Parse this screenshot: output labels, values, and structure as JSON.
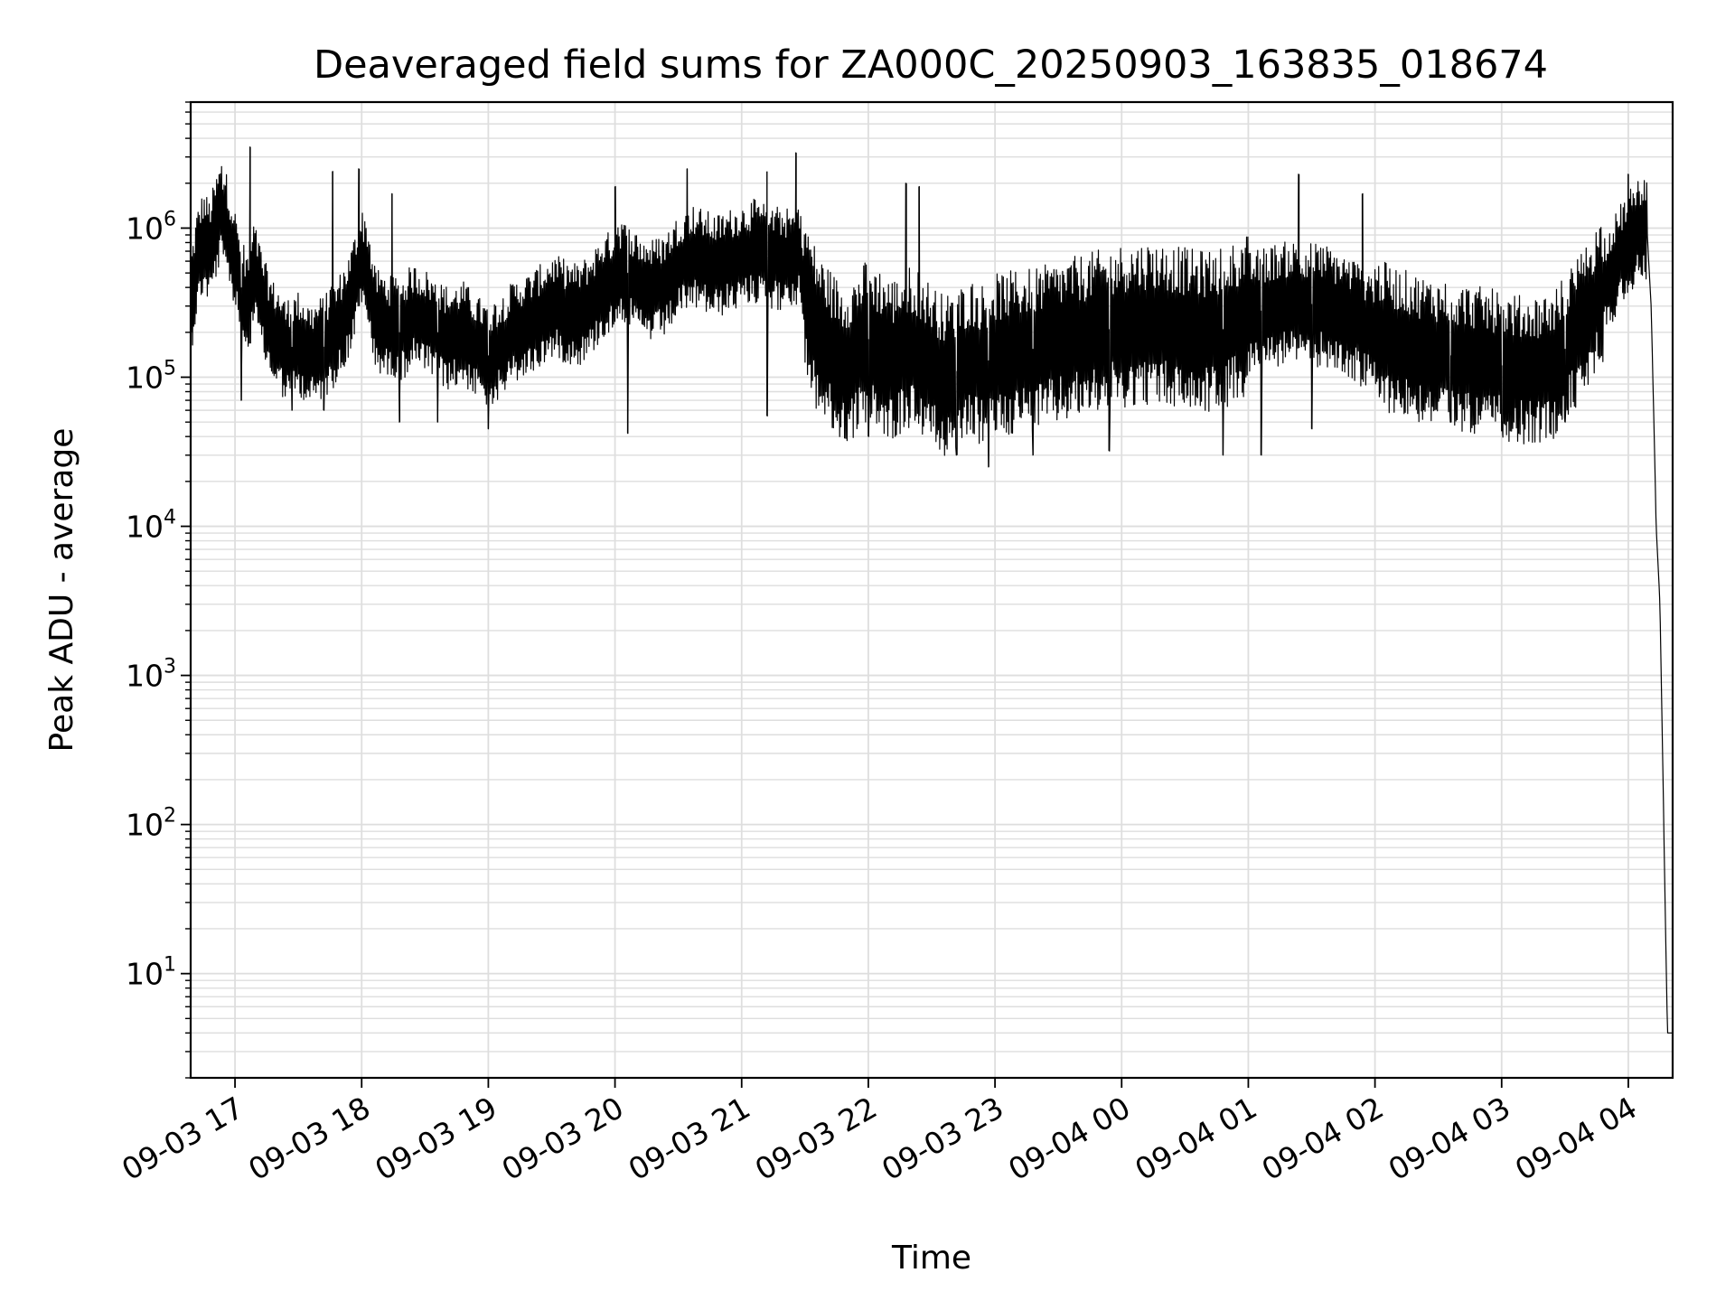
{
  "chart_data": {
    "type": "line",
    "title": "Deaveraged field sums for ZA000C_20250903_163835_018674",
    "xlabel": "Time",
    "ylabel": "Peak ADU - average",
    "yscale": "log",
    "ylim": [
      2,
      7000000
    ],
    "xlim_hours": [
      -0.35,
      11.35
    ],
    "grid": true,
    "x_ticks": [
      {
        "hour": 0,
        "label": "09-03 17"
      },
      {
        "hour": 1,
        "label": "09-03 18"
      },
      {
        "hour": 2,
        "label": "09-03 19"
      },
      {
        "hour": 3,
        "label": "09-03 20"
      },
      {
        "hour": 4,
        "label": "09-03 21"
      },
      {
        "hour": 5,
        "label": "09-03 22"
      },
      {
        "hour": 6,
        "label": "09-03 23"
      },
      {
        "hour": 7,
        "label": "09-04 00"
      },
      {
        "hour": 8,
        "label": "09-04 01"
      },
      {
        "hour": 9,
        "label": "09-04 02"
      },
      {
        "hour": 10,
        "label": "09-04 03"
      },
      {
        "hour": 11,
        "label": "09-04 04"
      }
    ],
    "y_ticks": [
      {
        "value": 10,
        "base": "10",
        "exp": "1"
      },
      {
        "value": 100,
        "base": "10",
        "exp": "2"
      },
      {
        "value": 1000,
        "base": "10",
        "exp": "3"
      },
      {
        "value": 10000,
        "base": "10",
        "exp": "4"
      },
      {
        "value": 100000,
        "base": "10",
        "exp": "5"
      },
      {
        "value": 1000000,
        "base": "10",
        "exp": "6"
      }
    ],
    "series": [
      {
        "name": "peak_adu_minus_average",
        "color": "#000000",
        "points": [
          [
            -0.35,
            300000
          ],
          [
            -0.3,
            600000
          ],
          [
            -0.25,
            800000
          ],
          [
            -0.2,
            700000
          ],
          [
            -0.15,
            1000000
          ],
          [
            -0.1,
            1400000
          ],
          [
            -0.05,
            900000
          ],
          [
            0.0,
            600000
          ],
          [
            0.05,
            400000
          ],
          [
            0.1,
            300000
          ],
          [
            0.15,
            500000
          ],
          [
            0.2,
            350000
          ],
          [
            0.25,
            250000
          ],
          [
            0.3,
            200000
          ],
          [
            0.35,
            180000
          ],
          [
            0.4,
            150000
          ],
          [
            0.5,
            170000
          ],
          [
            0.6,
            140000
          ],
          [
            0.7,
            160000
          ],
          [
            0.8,
            200000
          ],
          [
            0.9,
            300000
          ],
          [
            1.0,
            600000
          ],
          [
            1.05,
            500000
          ],
          [
            1.1,
            250000
          ],
          [
            1.2,
            220000
          ],
          [
            1.3,
            200000
          ],
          [
            1.4,
            260000
          ],
          [
            1.5,
            240000
          ],
          [
            1.6,
            200000
          ],
          [
            1.7,
            180000
          ],
          [
            1.8,
            200000
          ],
          [
            1.9,
            160000
          ],
          [
            2.0,
            140000
          ],
          [
            2.1,
            160000
          ],
          [
            2.2,
            200000
          ],
          [
            2.3,
            220000
          ],
          [
            2.4,
            250000
          ],
          [
            2.5,
            300000
          ],
          [
            2.6,
            280000
          ],
          [
            2.7,
            260000
          ],
          [
            2.8,
            300000
          ],
          [
            2.9,
            400000
          ],
          [
            3.0,
            450000
          ],
          [
            3.1,
            500000
          ],
          [
            3.2,
            400000
          ],
          [
            3.3,
            380000
          ],
          [
            3.4,
            420000
          ],
          [
            3.5,
            550000
          ],
          [
            3.6,
            650000
          ],
          [
            3.7,
            600000
          ],
          [
            3.8,
            550000
          ],
          [
            3.9,
            600000
          ],
          [
            4.0,
            650000
          ],
          [
            4.1,
            700000
          ],
          [
            4.2,
            650000
          ],
          [
            4.3,
            620000
          ],
          [
            4.4,
            600000
          ],
          [
            4.45,
            700000
          ],
          [
            4.5,
            400000
          ],
          [
            4.55,
            250000
          ],
          [
            4.6,
            200000
          ],
          [
            4.7,
            150000
          ],
          [
            4.8,
            120000
          ],
          [
            4.9,
            140000
          ],
          [
            5.0,
            180000
          ],
          [
            5.1,
            150000
          ],
          [
            5.2,
            130000
          ],
          [
            5.3,
            160000
          ],
          [
            5.4,
            150000
          ],
          [
            5.5,
            120000
          ],
          [
            5.6,
            100000
          ],
          [
            5.7,
            110000
          ],
          [
            5.8,
            130000
          ],
          [
            5.9,
            120000
          ],
          [
            6.0,
            140000
          ],
          [
            6.2,
            150000
          ],
          [
            6.4,
            160000
          ],
          [
            6.6,
            180000
          ],
          [
            6.8,
            200000
          ],
          [
            7.0,
            220000
          ],
          [
            7.2,
            230000
          ],
          [
            7.4,
            220000
          ],
          [
            7.6,
            200000
          ],
          [
            7.8,
            210000
          ],
          [
            8.0,
            260000
          ],
          [
            8.2,
            300000
          ],
          [
            8.4,
            320000
          ],
          [
            8.6,
            300000
          ],
          [
            8.8,
            250000
          ],
          [
            9.0,
            200000
          ],
          [
            9.2,
            170000
          ],
          [
            9.4,
            150000
          ],
          [
            9.6,
            140000
          ],
          [
            9.8,
            130000
          ],
          [
            10.0,
            120000
          ],
          [
            10.2,
            110000
          ],
          [
            10.4,
            120000
          ],
          [
            10.6,
            200000
          ],
          [
            10.8,
            400000
          ],
          [
            11.0,
            800000
          ],
          [
            11.1,
            1000000
          ],
          [
            11.15,
            900000
          ],
          [
            11.18,
            300000
          ],
          [
            11.2,
            60000
          ],
          [
            11.22,
            10000
          ],
          [
            11.25,
            3000
          ],
          [
            11.28,
            100
          ],
          [
            11.3,
            10
          ],
          [
            11.31,
            4
          ],
          [
            11.35,
            4
          ]
        ],
        "spikes_high": [
          [
            -0.1,
            1800000
          ],
          [
            0.12,
            3500000
          ],
          [
            0.77,
            2400000
          ],
          [
            0.98,
            2500000
          ],
          [
            1.24,
            1700000
          ],
          [
            3.0,
            1900000
          ],
          [
            3.57,
            2500000
          ],
          [
            4.2,
            2400000
          ],
          [
            4.43,
            3200000
          ],
          [
            5.3,
            2000000
          ],
          [
            5.4,
            1900000
          ],
          [
            8.4,
            2300000
          ],
          [
            8.9,
            1700000
          ],
          [
            11.0,
            2300000
          ]
        ],
        "spikes_low": [
          [
            0.05,
            70000
          ],
          [
            0.45,
            60000
          ],
          [
            0.7,
            60000
          ],
          [
            1.3,
            50000
          ],
          [
            1.6,
            50000
          ],
          [
            2.0,
            45000
          ],
          [
            3.1,
            42000
          ],
          [
            4.2,
            55000
          ],
          [
            5.0,
            40000
          ],
          [
            5.7,
            30000
          ],
          [
            5.95,
            25000
          ],
          [
            6.3,
            30000
          ],
          [
            6.9,
            32000
          ],
          [
            7.8,
            30000
          ],
          [
            8.1,
            30000
          ],
          [
            8.5,
            45000
          ],
          [
            9.6,
            50000
          ],
          [
            10.0,
            50000
          ],
          [
            10.5,
            50000
          ]
        ]
      }
    ]
  }
}
